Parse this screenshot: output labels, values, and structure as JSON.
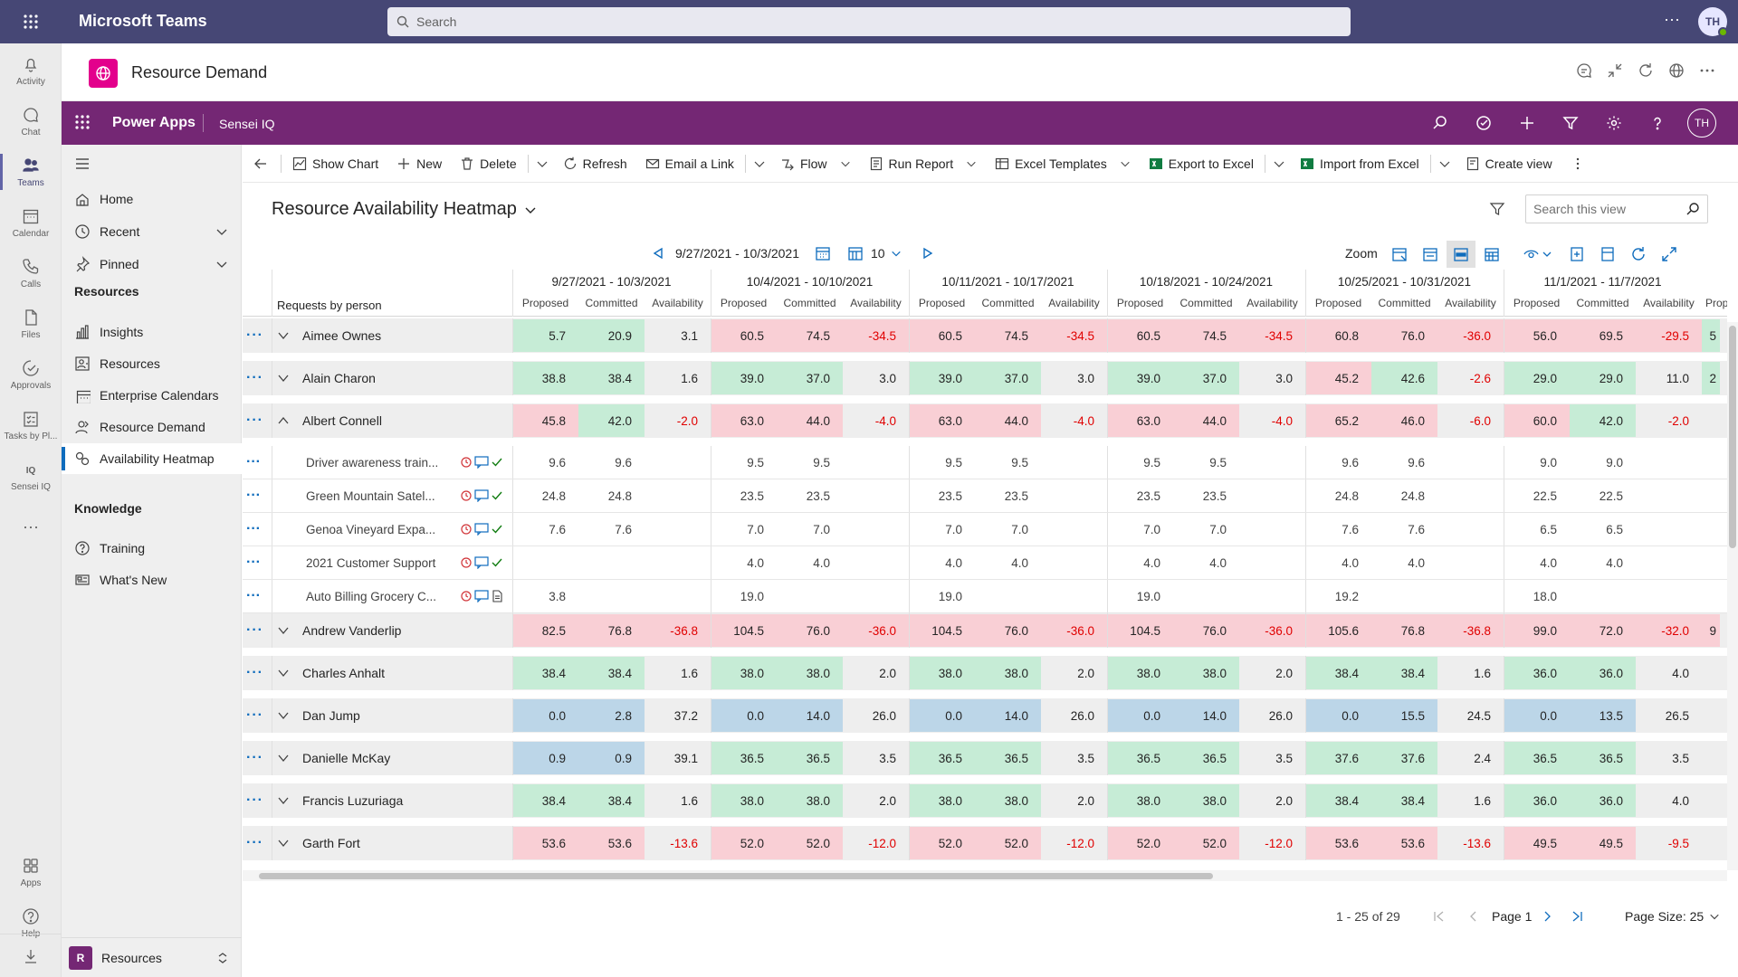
{
  "teams": {
    "app_name": "Microsoft Teams",
    "search_placeholder": "Search",
    "avatar_initials": "TH",
    "rail": [
      {
        "label": "Activity",
        "icon": "bell-icon"
      },
      {
        "label": "Chat",
        "icon": "chat-icon"
      },
      {
        "label": "Teams",
        "icon": "teams-icon",
        "active": true
      },
      {
        "label": "Calendar",
        "icon": "calendar-icon"
      },
      {
        "label": "Calls",
        "icon": "phone-icon"
      },
      {
        "label": "Files",
        "icon": "file-icon"
      },
      {
        "label": "Approvals",
        "icon": "approvals-icon"
      },
      {
        "label": "Tasks by Pl...",
        "icon": "tasks-icon"
      },
      {
        "label": "Sensei IQ",
        "icon": "sensei-iq-icon"
      }
    ],
    "rail_bottom": [
      {
        "label": "Apps",
        "icon": "apps-icon"
      },
      {
        "label": "Help",
        "icon": "help-icon"
      }
    ]
  },
  "app_header": {
    "title": "Resource Demand"
  },
  "power_apps": {
    "title": "Power Apps",
    "app_name": "Sensei IQ",
    "avatar_initials": "TH"
  },
  "left_nav": {
    "items_top": [
      {
        "label": "Home",
        "icon": "home-icon"
      },
      {
        "label": "Recent",
        "icon": "clock-icon",
        "has_chevron": true
      },
      {
        "label": "Pinned",
        "icon": "pin-icon",
        "has_chevron": true
      }
    ],
    "section_resources": "Resources",
    "resources_items": [
      {
        "label": "Insights",
        "icon": "chart-icon"
      },
      {
        "label": "Resources",
        "icon": "resources-icon"
      },
      {
        "label": "Enterprise Calendars",
        "icon": "calendar-icon"
      },
      {
        "label": "Resource Demand",
        "icon": "person-icon"
      },
      {
        "label": "Availability Heatmap",
        "icon": "heatmap-icon",
        "selected": true
      }
    ],
    "section_knowledge": "Knowledge",
    "knowledge_items": [
      {
        "label": "Training",
        "icon": "help-circle-icon"
      },
      {
        "label": "What's New",
        "icon": "news-icon"
      }
    ],
    "area_badge": "R",
    "area_label": "Resources"
  },
  "commands": {
    "show_chart": "Show Chart",
    "new": "New",
    "delete": "Delete",
    "refresh": "Refresh",
    "email_link": "Email a Link",
    "flow": "Flow",
    "run_report": "Run Report",
    "excel_templates": "Excel Templates",
    "export_excel": "Export to Excel",
    "import_excel": "Import from Excel",
    "create_view": "Create view"
  },
  "view": {
    "title": "Resource Availability Heatmap",
    "search_placeholder": "Search this view"
  },
  "heatmap_toolbar": {
    "date_range": "9/27/2021 - 10/3/2021",
    "period_count": "10",
    "zoom_label": "Zoom"
  },
  "grid": {
    "requests_label": "Requests by person",
    "sub_headers": [
      "Proposed",
      "Committed",
      "Availability"
    ],
    "weeks": [
      "9/27/2021 - 10/3/2021",
      "10/4/2021 - 10/10/2021",
      "10/11/2021 - 10/17/2021",
      "10/18/2021 - 10/24/2021",
      "10/25/2021 - 10/31/2021",
      "11/1/2021 - 11/7/2021"
    ],
    "next_sub_header": "Prop",
    "rows": [
      {
        "type": "person",
        "name": "Aimee Ownes",
        "expanded": false,
        "values": [
          "5.7",
          "20.9",
          "3.1",
          "60.5",
          "74.5",
          "-34.5",
          "60.5",
          "74.5",
          "-34.5",
          "60.5",
          "74.5",
          "-34.5",
          "60.8",
          "76.0",
          "-36.0",
          "56.0",
          "69.5",
          "-29.5"
        ],
        "colors": [
          "g",
          "g",
          "",
          "r",
          "r",
          "r",
          "r",
          "r",
          "r",
          "r",
          "r",
          "r",
          "r",
          "r",
          "r",
          "r",
          "r",
          "r"
        ],
        "cutoff": "5"
      },
      {
        "type": "person",
        "name": "Alain Charon",
        "expanded": false,
        "values": [
          "38.8",
          "38.4",
          "1.6",
          "39.0",
          "37.0",
          "3.0",
          "39.0",
          "37.0",
          "3.0",
          "39.0",
          "37.0",
          "3.0",
          "45.2",
          "42.6",
          "-2.6",
          "29.0",
          "29.0",
          "11.0"
        ],
        "colors": [
          "g",
          "g",
          "",
          "g",
          "g",
          "",
          "g",
          "g",
          "",
          "g",
          "g",
          "",
          "r",
          "g",
          "",
          "g",
          "g",
          ""
        ],
        "cutoff": "2"
      },
      {
        "type": "person",
        "name": "Albert Connell",
        "expanded": true,
        "values": [
          "45.8",
          "42.0",
          "-2.0",
          "63.0",
          "44.0",
          "-4.0",
          "63.0",
          "44.0",
          "-4.0",
          "63.0",
          "44.0",
          "-4.0",
          "65.2",
          "46.0",
          "-6.0",
          "60.0",
          "42.0",
          "-2.0"
        ],
        "colors": [
          "r",
          "g",
          "",
          "r",
          "r",
          "",
          "r",
          "r",
          "",
          "r",
          "r",
          "",
          "r",
          "r",
          "",
          "r",
          "g",
          ""
        ],
        "cutoff": ""
      },
      {
        "type": "task",
        "name": "Driver awareness train...",
        "icons": [
          "clock",
          "chat",
          "check"
        ],
        "values": [
          "9.6",
          "9.6",
          "",
          "9.5",
          "9.5",
          "",
          "9.5",
          "9.5",
          "",
          "9.5",
          "9.5",
          "",
          "9.6",
          "9.6",
          "",
          "9.0",
          "9.0",
          ""
        ]
      },
      {
        "type": "task",
        "name": "Green Mountain Satel...",
        "icons": [
          "clock",
          "chat",
          "check"
        ],
        "values": [
          "24.8",
          "24.8",
          "",
          "23.5",
          "23.5",
          "",
          "23.5",
          "23.5",
          "",
          "23.5",
          "23.5",
          "",
          "24.8",
          "24.8",
          "",
          "22.5",
          "22.5",
          ""
        ]
      },
      {
        "type": "task",
        "name": "Genoa Vineyard Expa...",
        "icons": [
          "clock",
          "chat",
          "check"
        ],
        "values": [
          "7.6",
          "7.6",
          "",
          "7.0",
          "7.0",
          "",
          "7.0",
          "7.0",
          "",
          "7.0",
          "7.0",
          "",
          "7.6",
          "7.6",
          "",
          "6.5",
          "6.5",
          ""
        ]
      },
      {
        "type": "task",
        "name": "2021 Customer Support",
        "icons": [
          "clock",
          "chat",
          "check"
        ],
        "values": [
          "",
          "",
          "",
          "4.0",
          "4.0",
          "",
          "4.0",
          "4.0",
          "",
          "4.0",
          "4.0",
          "",
          "4.0",
          "4.0",
          "",
          "4.0",
          "4.0",
          ""
        ]
      },
      {
        "type": "task",
        "name": "Auto Billing Grocery C...",
        "icons": [
          "clock",
          "chat",
          "doc"
        ],
        "values": [
          "3.8",
          "",
          "",
          "19.0",
          "",
          "",
          "19.0",
          "",
          "",
          "19.0",
          "",
          "",
          "19.2",
          "",
          "",
          "18.0",
          "",
          ""
        ]
      },
      {
        "type": "person",
        "name": "Andrew Vanderlip",
        "expanded": false,
        "values": [
          "82.5",
          "76.8",
          "-36.8",
          "104.5",
          "76.0",
          "-36.0",
          "104.5",
          "76.0",
          "-36.0",
          "104.5",
          "76.0",
          "-36.0",
          "105.6",
          "76.8",
          "-36.8",
          "99.0",
          "72.0",
          "-32.0"
        ],
        "colors": [
          "r",
          "r",
          "r",
          "r",
          "r",
          "r",
          "r",
          "r",
          "r",
          "r",
          "r",
          "r",
          "r",
          "r",
          "r",
          "r",
          "r",
          "r"
        ],
        "cutoff": "9"
      },
      {
        "type": "person",
        "name": "Charles Anhalt",
        "expanded": false,
        "values": [
          "38.4",
          "38.4",
          "1.6",
          "38.0",
          "38.0",
          "2.0",
          "38.0",
          "38.0",
          "2.0",
          "38.0",
          "38.0",
          "2.0",
          "38.4",
          "38.4",
          "1.6",
          "36.0",
          "36.0",
          "4.0"
        ],
        "colors": [
          "g",
          "g",
          "",
          "g",
          "g",
          "",
          "g",
          "g",
          "",
          "g",
          "g",
          "",
          "g",
          "g",
          "",
          "g",
          "g",
          ""
        ],
        "cutoff": ""
      },
      {
        "type": "person",
        "name": "Dan Jump",
        "expanded": false,
        "values": [
          "0.0",
          "2.8",
          "37.2",
          "0.0",
          "14.0",
          "26.0",
          "0.0",
          "14.0",
          "26.0",
          "0.0",
          "14.0",
          "26.0",
          "0.0",
          "15.5",
          "24.5",
          "0.0",
          "13.5",
          "26.5"
        ],
        "colors": [
          "b",
          "b",
          "",
          "b",
          "b",
          "",
          "b",
          "b",
          "",
          "b",
          "b",
          "",
          "b",
          "b",
          "",
          "b",
          "b",
          ""
        ],
        "cutoff": ""
      },
      {
        "type": "person",
        "name": "Danielle McKay",
        "expanded": false,
        "values": [
          "0.9",
          "0.9",
          "39.1",
          "36.5",
          "36.5",
          "3.5",
          "36.5",
          "36.5",
          "3.5",
          "36.5",
          "36.5",
          "3.5",
          "37.6",
          "37.6",
          "2.4",
          "36.5",
          "36.5",
          "3.5"
        ],
        "colors": [
          "b",
          "b",
          "",
          "g",
          "g",
          "",
          "g",
          "g",
          "",
          "g",
          "g",
          "",
          "g",
          "g",
          "",
          "g",
          "g",
          ""
        ],
        "cutoff": ""
      },
      {
        "type": "person",
        "name": "Francis Luzuriaga",
        "expanded": false,
        "values": [
          "38.4",
          "38.4",
          "1.6",
          "38.0",
          "38.0",
          "2.0",
          "38.0",
          "38.0",
          "2.0",
          "38.0",
          "38.0",
          "2.0",
          "38.4",
          "38.4",
          "1.6",
          "36.0",
          "36.0",
          "4.0"
        ],
        "colors": [
          "g",
          "g",
          "",
          "g",
          "g",
          "",
          "g",
          "g",
          "",
          "g",
          "g",
          "",
          "g",
          "g",
          "",
          "g",
          "g",
          ""
        ],
        "cutoff": ""
      },
      {
        "type": "person",
        "name": "Garth Fort",
        "expanded": false,
        "values": [
          "53.6",
          "53.6",
          "-13.6",
          "52.0",
          "52.0",
          "-12.0",
          "52.0",
          "52.0",
          "-12.0",
          "52.0",
          "52.0",
          "-12.0",
          "53.6",
          "53.6",
          "-13.6",
          "49.5",
          "49.5",
          "-9.5"
        ],
        "colors": [
          "r",
          "r",
          "",
          "r",
          "r",
          "",
          "r",
          "r",
          "",
          "r",
          "r",
          "",
          "r",
          "r",
          "",
          "r",
          "r",
          ""
        ],
        "cutoff": ""
      }
    ]
  },
  "pager": {
    "count": "1 - 25 of 29",
    "page": "Page 1",
    "page_size": "Page Size: 25"
  },
  "colors": {
    "teams_bar": "#464775",
    "power_apps_bar": "#742774",
    "heat_red": "#f9cfd5",
    "heat_green": "#c6ecd6",
    "heat_blue": "#bcd6e8",
    "negative_text": "#e00000",
    "link_blue": "#0f6cbd"
  }
}
